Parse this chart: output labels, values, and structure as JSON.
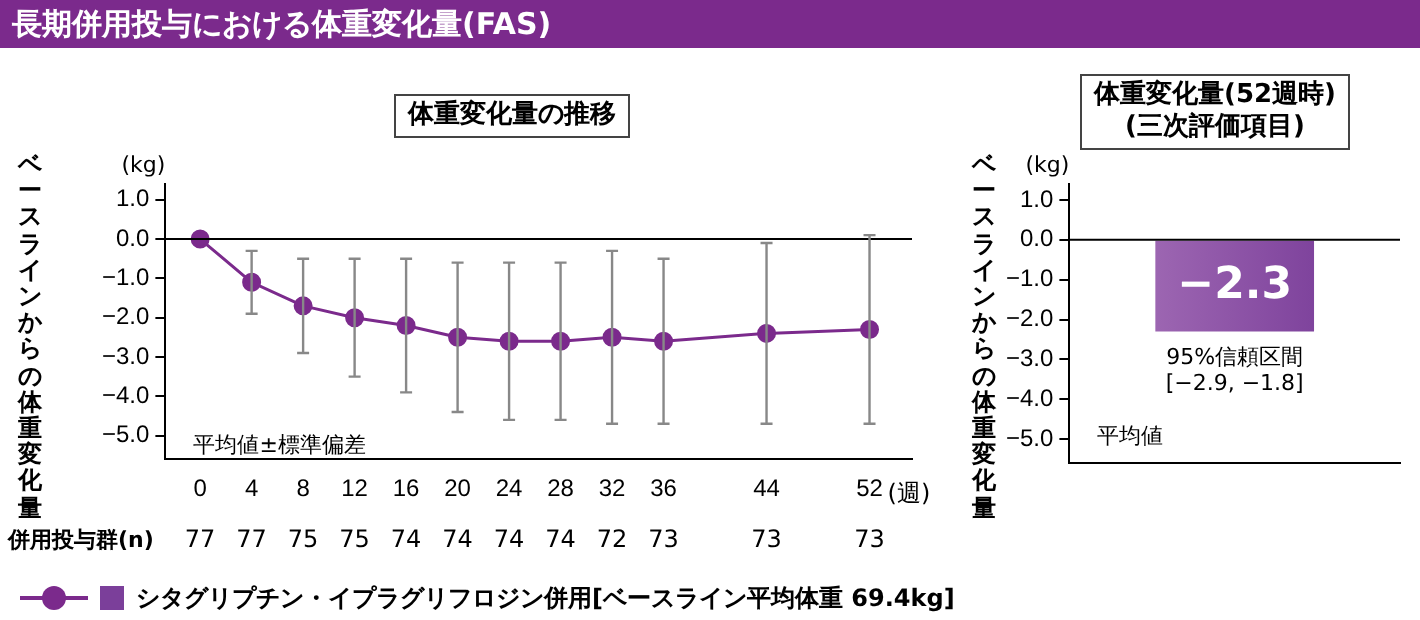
{
  "chart_data": [
    {
      "type": "line",
      "title": "長期併用投与における体重変化量(FAS)",
      "subtitle": "体重変化量の推移",
      "xlabel": "(週)",
      "ylabel": "ベースラインからの体重変化量",
      "x": [
        0,
        4,
        8,
        12,
        16,
        20,
        24,
        28,
        32,
        36,
        44,
        52
      ],
      "series": [
        {
          "name": "シタグリプチン・イプラグリフロジン併用[ベースライン平均体重 69.4kg]",
          "color": "#7b2a8c",
          "values": [
            0,
            -1.1,
            -1.7,
            -2.0,
            -2.2,
            -2.5,
            -2.6,
            -2.6,
            -2.5,
            -2.6,
            -2.4,
            -2.3
          ],
          "errors": [
            null,
            [
              -1.9,
              -0.3
            ],
            [
              -2.9,
              -0.5
            ],
            [
              -3.5,
              -0.5
            ],
            [
              -3.9,
              -0.5
            ],
            [
              -4.4,
              -0.6
            ],
            [
              -4.6,
              -0.6
            ],
            [
              -4.6,
              -0.6
            ],
            [
              -4.7,
              -0.3
            ],
            [
              -4.7,
              -0.5
            ],
            [
              -4.7,
              -0.1
            ],
            [
              -4.7,
              0.1
            ]
          ]
        }
      ],
      "xlim": [
        -2.7,
        55.3
      ],
      "xticks": [
        0,
        4,
        8,
        12,
        16,
        20,
        24,
        28,
        32,
        36,
        44,
        52
      ],
      "ylim": [
        -5.6,
        1.4
      ],
      "yticks": [
        {
          "value": 1,
          "label": "1.0"
        },
        {
          "value": 0,
          "label": "0.0"
        },
        {
          "value": -1,
          "label": "−1.0"
        },
        {
          "value": -2,
          "label": "−2.0"
        },
        {
          "value": -3,
          "label": "−3.0"
        },
        {
          "value": -4,
          "label": "−4.0"
        },
        {
          "value": -5,
          "label": "−5.0"
        }
      ],
      "ref_lines": [
        {
          "axis": "y",
          "value": 0,
          "color": "#000000"
        }
      ],
      "marker": "circle",
      "line_style": "solid",
      "legend": "bottom",
      "annotations": [
        "(kg)",
        "平均値±標準偏差",
        "併用投与群(n)",
        "77",
        "77",
        "75",
        "75",
        "74",
        "74",
        "74",
        "74",
        "72",
        "73",
        "73",
        "73"
      ]
    },
    {
      "type": "bar",
      "title": "体重変化量(52週時)\n(三次評価項目)",
      "ylabel": "ベースラインからの体重変化量",
      "categories": [
        null
      ],
      "series": [
        {
          "color": "#7b3f9a",
          "values": [
            -2.3
          ],
          "value_labels": [
            "−2.3"
          ]
        }
      ],
      "ylim": [
        -5.6,
        1.4
      ],
      "yticks": [
        {
          "value": 1,
          "label": "1.0"
        },
        {
          "value": 0,
          "label": "0.0"
        },
        {
          "value": -1,
          "label": "−1.0"
        },
        {
          "value": -2,
          "label": "−2.0"
        },
        {
          "value": -3,
          "label": "−3.0"
        },
        {
          "value": -4,
          "label": "−4.0"
        },
        {
          "value": -5,
          "label": "−5.0"
        }
      ],
      "ref_lines": [
        {
          "axis": "y",
          "value": 0,
          "color": "#000000"
        }
      ],
      "annotations": [
        "(kg)",
        "95%信頼区間\n[−2.9, −1.8]",
        "平均値"
      ]
    }
  ]
}
